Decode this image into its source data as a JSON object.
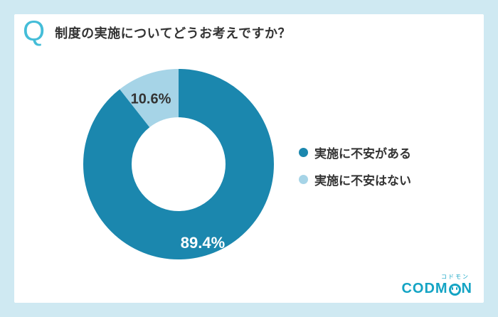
{
  "header": {
    "q_mark": "Q",
    "title": "制度の実施についてどうお考えですか？"
  },
  "chart_data": {
    "type": "pie",
    "subtype": "donut",
    "title": "制度の実施についてどうお考えですか？",
    "direction": "clockwise",
    "start_angle_deg": 0,
    "inner_radius_ratio": 0.49,
    "legend_position": "right",
    "slices": [
      {
        "label": "実施に不安がある",
        "value": 89.4,
        "display": "89.4%",
        "color": "#1b87ae",
        "text_color": "#ffffff"
      },
      {
        "label": "実施に不安はない",
        "value": 10.6,
        "display": "10.6%",
        "color": "#a6d4e7",
        "text_color": "#333333"
      }
    ]
  },
  "logo": {
    "kana": "コドモン",
    "before_face": "CODM",
    "after_face": "N"
  },
  "colors": {
    "frame": "#cfe9f2",
    "card": "#ffffff",
    "q_icon": "#44bdd8",
    "title_text": "#333333",
    "logo": "#14a4c4"
  }
}
